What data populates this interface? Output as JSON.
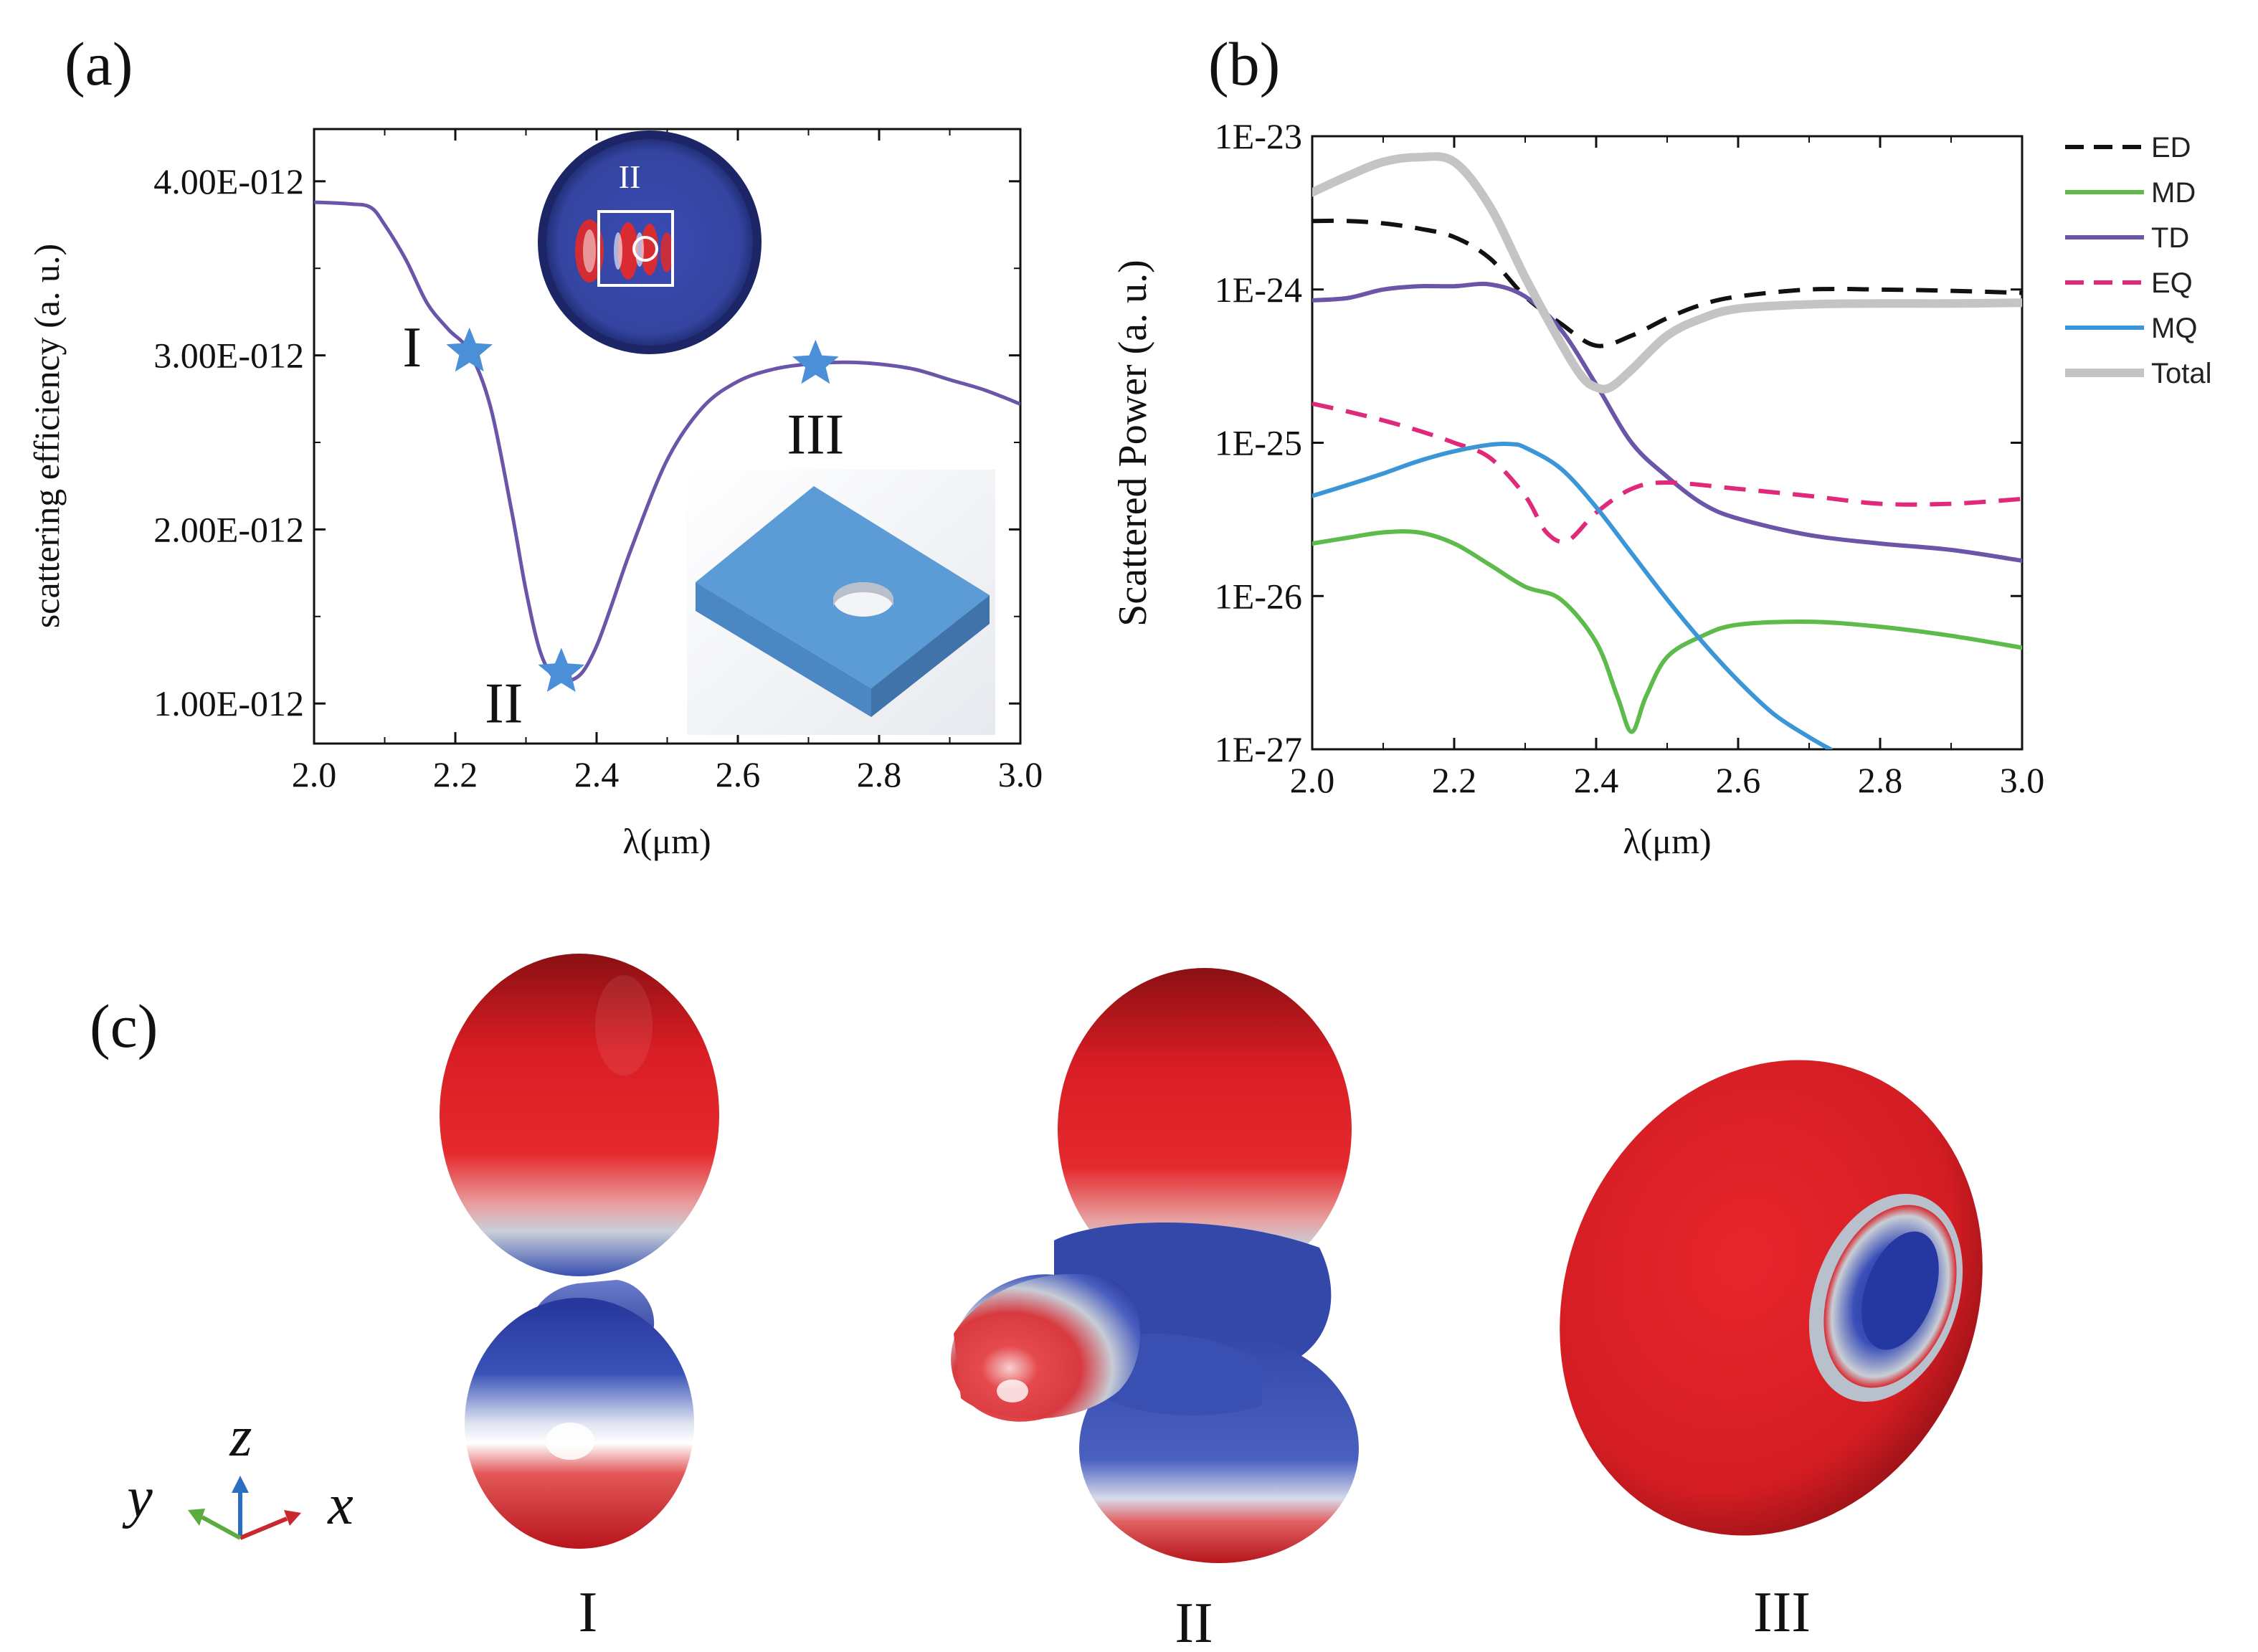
{
  "panels": {
    "a": {
      "letter": "(a)",
      "chart_data": {
        "type": "line",
        "title": "",
        "xlabel": "λ(μm)",
        "ylabel": "scattering efficiency (a. u.)",
        "xlim": [
          2.0,
          3.0
        ],
        "ylim": [
          7.7e-13,
          4.3e-12
        ],
        "xticks": [
          2.0,
          2.2,
          2.4,
          2.6,
          2.8,
          3.0
        ],
        "xtick_labels": [
          "2.0",
          "2.2",
          "2.4",
          "2.6",
          "2.8",
          "3.0"
        ],
        "yticks": [
          1e-12,
          2e-12,
          3e-12,
          4e-12
        ],
        "ytick_labels": [
          "1.00E-012",
          "2.00E-012",
          "3.00E-012",
          "4.00E-012"
        ],
        "series": [
          {
            "name": "scattering efficiency",
            "color": "#6a55a8",
            "x": [
              2.0,
              2.05,
              2.08,
              2.1,
              2.13,
              2.16,
              2.19,
              2.22,
              2.25,
              2.28,
              2.3,
              2.32,
              2.34,
              2.36,
              2.38,
              2.4,
              2.42,
              2.45,
              2.5,
              2.55,
              2.6,
              2.65,
              2.7,
              2.75,
              2.8,
              2.85,
              2.9,
              2.95,
              3.0
            ],
            "y": [
              3.88e-12,
              3.87e-12,
              3.85e-12,
              3.75e-12,
              3.55e-12,
              3.3e-12,
              3.15e-12,
              3.02e-12,
              2.7e-12,
              2.1e-12,
              1.65e-12,
              1.3e-12,
              1.15e-12,
              1.13e-12,
              1.18e-12,
              1.33e-12,
              1.55e-12,
              1.9e-12,
              2.4e-12,
              2.7e-12,
              2.85e-12,
              2.92e-12,
              2.95e-12,
              2.96e-12,
              2.95e-12,
              2.92e-12,
              2.86e-12,
              2.8e-12,
              2.72e-12
            ]
          }
        ],
        "markers": [
          {
            "label": "I",
            "x": 2.22,
            "y": 3.02e-12,
            "color": "#4a8fd8"
          },
          {
            "label": "II",
            "x": 2.35,
            "y": 1.18e-12,
            "color": "#4a8fd8"
          },
          {
            "label": "III",
            "x": 2.71,
            "y": 2.95e-12,
            "color": "#4a8fd8"
          }
        ]
      },
      "inset_field_label": "II"
    },
    "b": {
      "letter": "(b)",
      "chart_data": {
        "type": "line",
        "title": "",
        "xlabel": "λ(μm)",
        "ylabel": "Scattered Power (a. u.)",
        "yscale": "log",
        "xlim": [
          2.0,
          3.0
        ],
        "ylim": [
          1e-27,
          1e-23
        ],
        "xticks": [
          2.0,
          2.2,
          2.4,
          2.6,
          2.8,
          3.0
        ],
        "xtick_labels": [
          "2.0",
          "2.2",
          "2.4",
          "2.6",
          "2.8",
          "3.0"
        ],
        "yticks": [
          1e-27,
          1e-26,
          1e-25,
          1e-24,
          1e-23
        ],
        "ytick_labels": [
          "1E-27",
          "1E-26",
          "1E-25",
          "1E-24",
          "1E-23"
        ],
        "legend_position": "right",
        "series": [
          {
            "name": "ED",
            "color": "#111111",
            "dash": true,
            "x": [
              2.0,
              2.05,
              2.1,
              2.15,
              2.2,
              2.25,
              2.3,
              2.35,
              2.4,
              2.45,
              2.5,
              2.55,
              2.6,
              2.7,
              2.8,
              2.9,
              3.0
            ],
            "y": [
              2.8e-24,
              2.8e-24,
              2.7e-24,
              2.5e-24,
              2.2e-24,
              1.6e-24,
              9e-25,
              6e-25,
              4.3e-25,
              5e-25,
              6.5e-25,
              8e-25,
              9e-25,
              1e-24,
              1e-24,
              9.8e-25,
              9.5e-25
            ]
          },
          {
            "name": "MD",
            "color": "#5cbb4a",
            "dash": false,
            "x": [
              2.0,
              2.05,
              2.1,
              2.15,
              2.2,
              2.25,
              2.3,
              2.35,
              2.4,
              2.43,
              2.45,
              2.47,
              2.5,
              2.55,
              2.6,
              2.7,
              2.8,
              2.9,
              3.0
            ],
            "y": [
              2.2e-26,
              2.4e-26,
              2.6e-26,
              2.6e-26,
              2.2e-26,
              1.6e-26,
              1.15e-26,
              9.5e-27,
              5e-27,
              2.2e-27,
              1.3e-27,
              2.2e-27,
              4e-27,
              5.5e-27,
              6.5e-27,
              6.8e-27,
              6.3e-27,
              5.5e-27,
              4.6e-27
            ]
          },
          {
            "name": "TD",
            "color": "#6a55a8",
            "dash": false,
            "x": [
              2.0,
              2.05,
              2.1,
              2.15,
              2.2,
              2.25,
              2.3,
              2.35,
              2.4,
              2.45,
              2.5,
              2.55,
              2.6,
              2.7,
              2.8,
              2.9,
              3.0
            ],
            "y": [
              8.5e-25,
              8.8e-25,
              1e-24,
              1.05e-24,
              1.05e-24,
              1.08e-24,
              9e-25,
              5.5e-25,
              2.4e-25,
              1e-25,
              6e-26,
              4e-26,
              3.2e-26,
              2.5e-26,
              2.2e-26,
              2e-26,
              1.7e-26
            ]
          },
          {
            "name": "EQ",
            "color": "#e0297a",
            "dash": true,
            "x": [
              2.0,
              2.05,
              2.1,
              2.15,
              2.2,
              2.25,
              2.3,
              2.33,
              2.36,
              2.4,
              2.45,
              2.5,
              2.6,
              2.7,
              2.8,
              2.9,
              3.0
            ],
            "y": [
              1.8e-25,
              1.6e-25,
              1.4e-25,
              1.2e-25,
              1e-25,
              8e-26,
              4.5e-26,
              2.6e-26,
              2.3e-26,
              3.5e-26,
              5e-26,
              5.5e-26,
              5e-26,
              4.5e-26,
              4e-26,
              4e-26,
              4.3e-26
            ]
          },
          {
            "name": "MQ",
            "color": "#3a96d6",
            "dash": false,
            "x": [
              2.0,
              2.05,
              2.1,
              2.15,
              2.2,
              2.25,
              2.28,
              2.3,
              2.35,
              2.4,
              2.45,
              2.5,
              2.55,
              2.6,
              2.65,
              2.7,
              2.73
            ],
            "y": [
              4.5e-26,
              5.3e-26,
              6.3e-26,
              7.6e-26,
              8.8e-26,
              9.7e-26,
              9.8e-26,
              9.3e-26,
              6.8e-26,
              3.8e-26,
              1.9e-26,
              9.5e-27,
              5e-27,
              2.8e-27,
              1.7e-27,
              1.2e-27,
              1e-27
            ]
          },
          {
            "name": "Total",
            "color": "#c4c4c4",
            "dash": false,
            "x": [
              2.0,
              2.05,
              2.1,
              2.15,
              2.2,
              2.25,
              2.3,
              2.35,
              2.38,
              2.4,
              2.42,
              2.45,
              2.5,
              2.55,
              2.6,
              2.7,
              2.8,
              2.9,
              3.0
            ],
            "y": [
              4.3e-24,
              5.5e-24,
              6.8e-24,
              7.3e-24,
              6.8e-24,
              3.5e-24,
              1.2e-24,
              4.5e-25,
              2.7e-25,
              2.3e-25,
              2.3e-25,
              3e-25,
              5e-25,
              6.5e-25,
              7.5e-25,
              8e-25,
              8.1e-25,
              8.1e-25,
              8.2e-25
            ]
          }
        ]
      }
    },
    "c": {
      "letter": "(c)",
      "axes": {
        "z": "z",
        "y": "y",
        "x": "x",
        "z_color": "#2a6fc0",
        "y_color": "#5cab3f",
        "x_color": "#c8282e"
      },
      "labels": [
        "I",
        "II",
        "III"
      ]
    }
  },
  "colors": {
    "field_red": "#e11f26",
    "field_blue": "#2c3fa8",
    "slab_blue": "#5b9cd6"
  }
}
